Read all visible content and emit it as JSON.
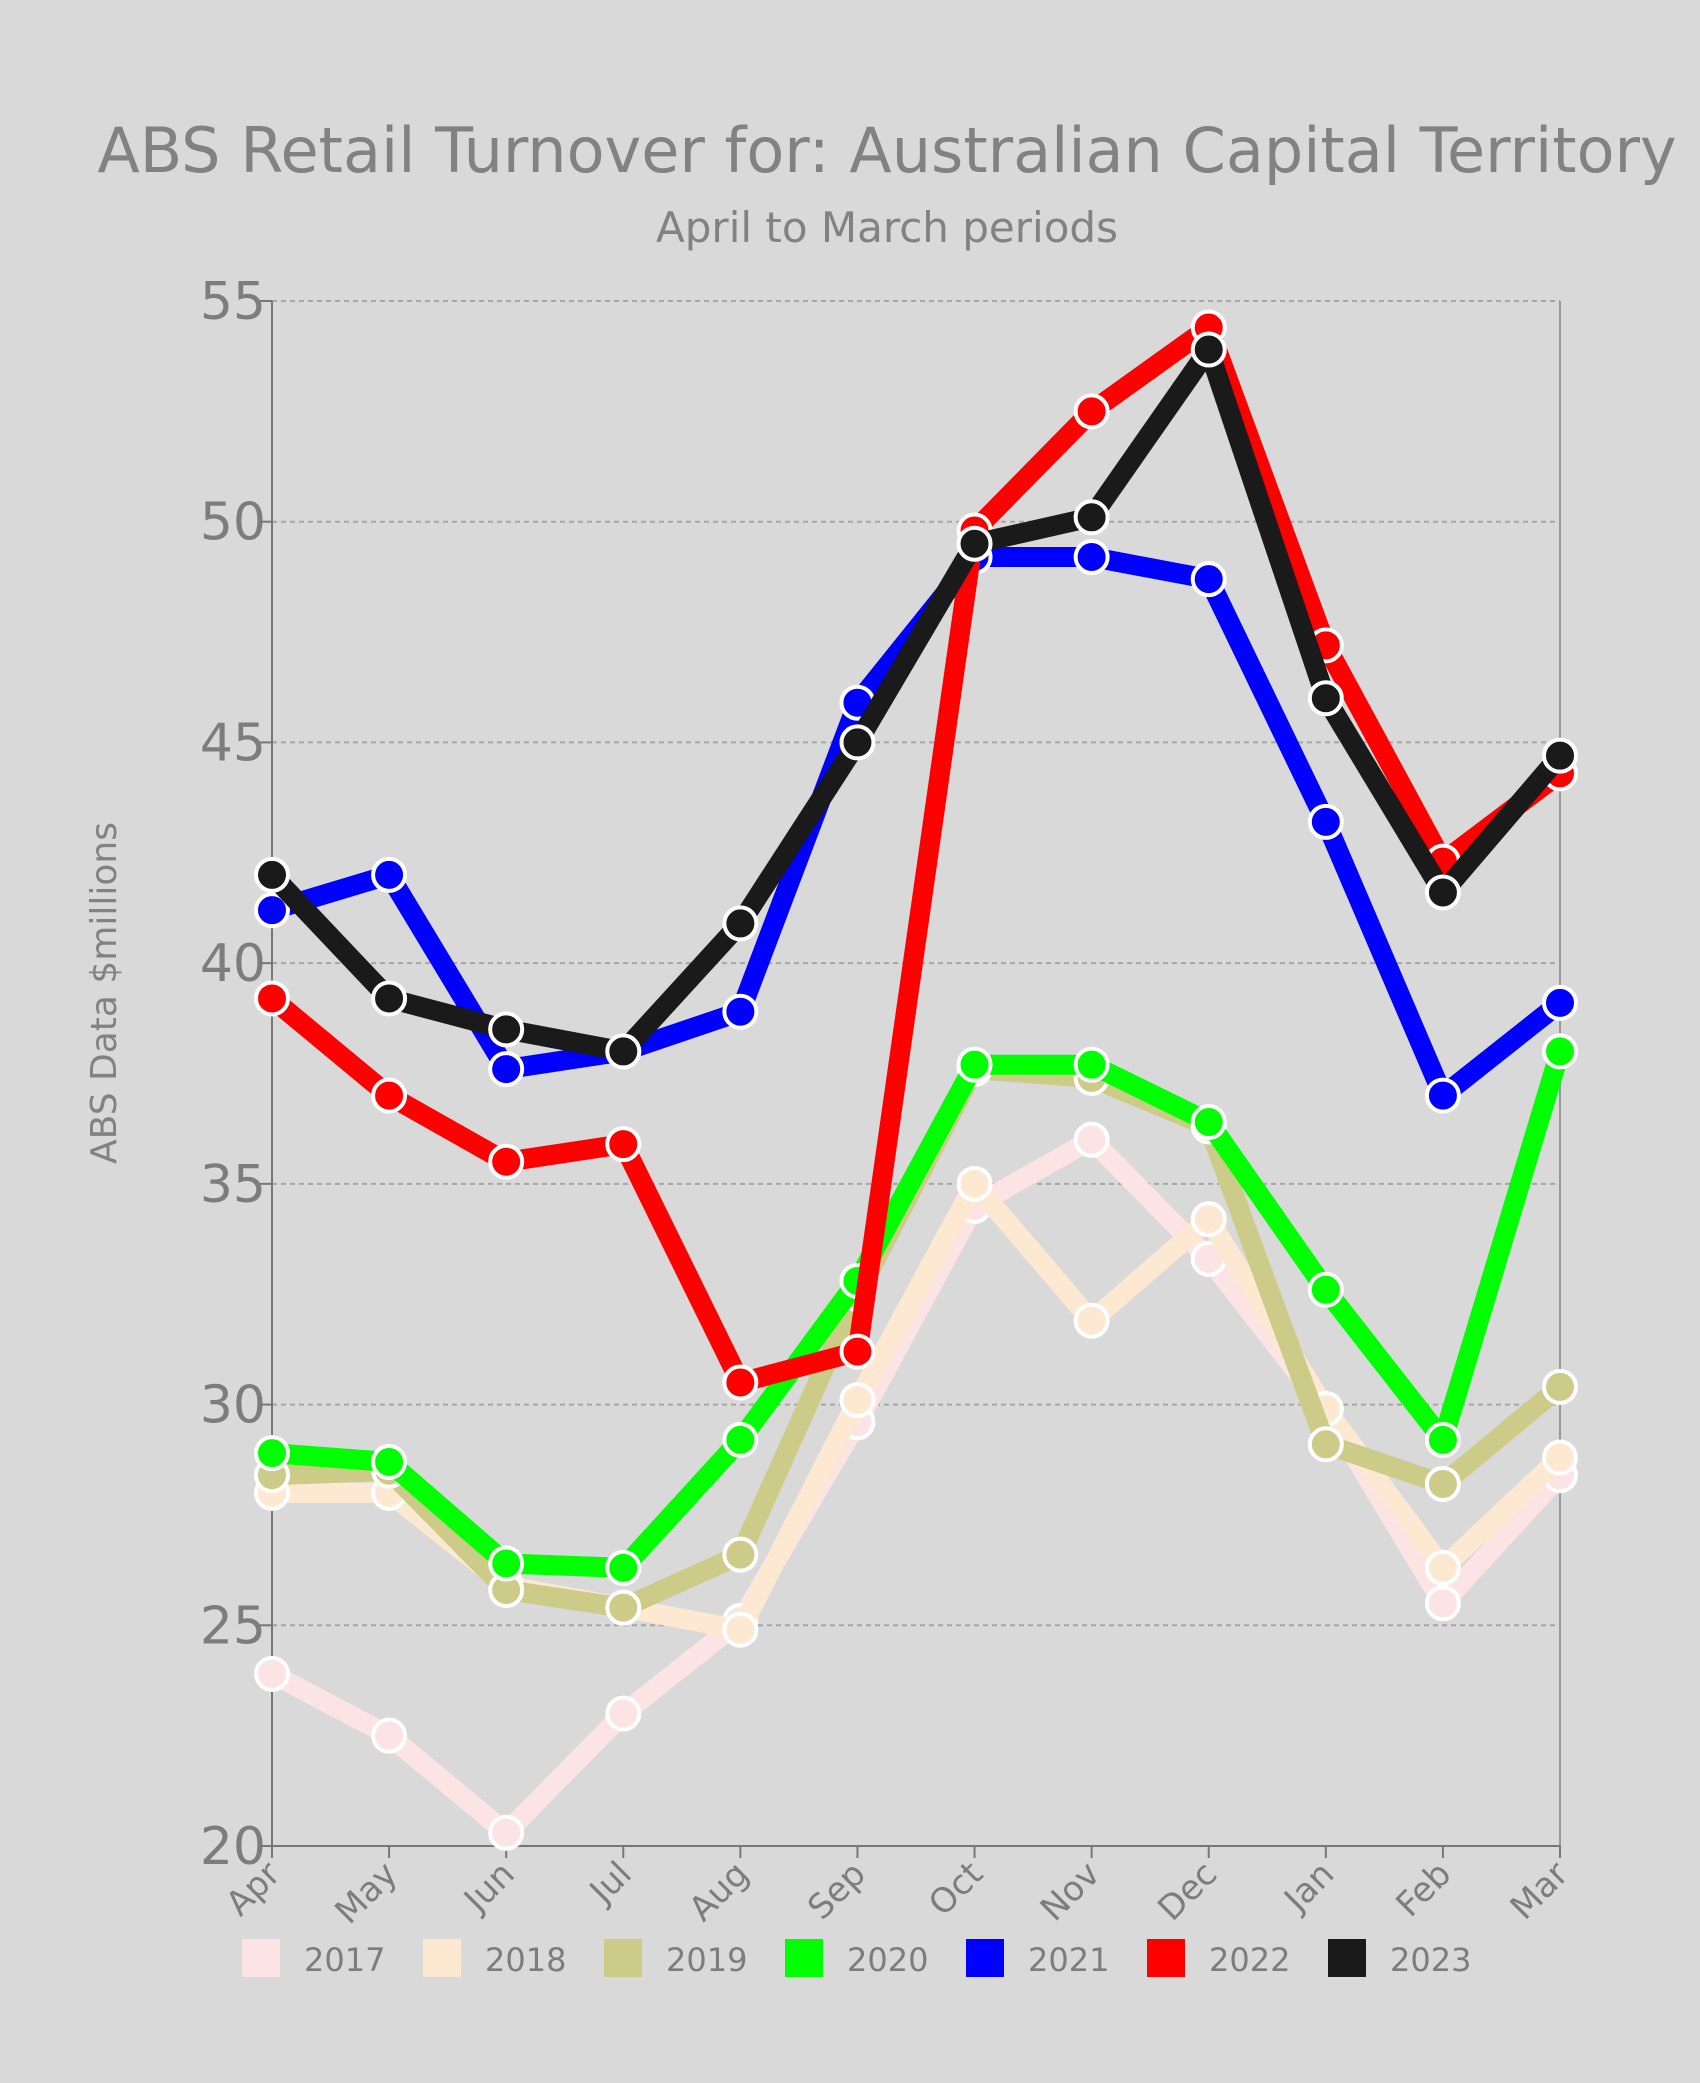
{
  "chart_data": {
    "type": "line",
    "title": "ABS Retail Turnover for: Australian Capital Territory",
    "subtitle": "April to March periods",
    "xlabel": "",
    "ylabel": "ABS Data $millions",
    "ylim": [
      20,
      55
    ],
    "yticks": [
      20,
      25,
      30,
      35,
      40,
      45,
      50,
      55
    ],
    "grid": true,
    "legend_position": "bottom",
    "categories": [
      "Apr",
      "May",
      "Jun",
      "Jul",
      "Aug",
      "Sep",
      "Oct",
      "Nov",
      "Dec",
      "Jan",
      "Feb",
      "Mar"
    ],
    "series": [
      {
        "name": "2017",
        "color": "#fde4e4",
        "values": [
          23.9,
          22.5,
          20.3,
          23.0,
          25.1,
          29.6,
          34.5,
          36.0,
          33.3,
          29.9,
          25.5,
          28.4
        ]
      },
      {
        "name": "2018",
        "color": "#fde9d2",
        "values": [
          28.0,
          28.0,
          25.9,
          25.4,
          24.9,
          30.1,
          35.0,
          31.9,
          34.2,
          29.9,
          26.3,
          28.8
        ]
      },
      {
        "name": "2019",
        "color": "#cccc88",
        "values": [
          28.4,
          28.5,
          25.8,
          25.4,
          26.6,
          32.5,
          37.6,
          37.4,
          36.3,
          29.1,
          28.2,
          30.4
        ]
      },
      {
        "name": "2020",
        "color": "#00ff00",
        "values": [
          28.9,
          28.7,
          26.4,
          26.3,
          29.2,
          32.8,
          37.7,
          37.7,
          36.4,
          32.6,
          29.2,
          38.0
        ]
      },
      {
        "name": "2021",
        "color": "#0000ff",
        "values": [
          41.2,
          42.0,
          37.6,
          38.0,
          38.9,
          45.9,
          49.2,
          49.2,
          48.7,
          43.2,
          37.0,
          39.1
        ]
      },
      {
        "name": "2022",
        "color": "#ff0000",
        "values": [
          39.2,
          37.0,
          35.5,
          35.9,
          30.5,
          31.2,
          49.8,
          52.5,
          54.4,
          47.2,
          42.3,
          44.3
        ]
      },
      {
        "name": "2023",
        "color": "#1a1a1a",
        "values": [
          42.0,
          39.2,
          38.5,
          38.0,
          40.9,
          45.0,
          49.5,
          50.1,
          53.9,
          46.0,
          41.6,
          44.7
        ]
      }
    ]
  }
}
